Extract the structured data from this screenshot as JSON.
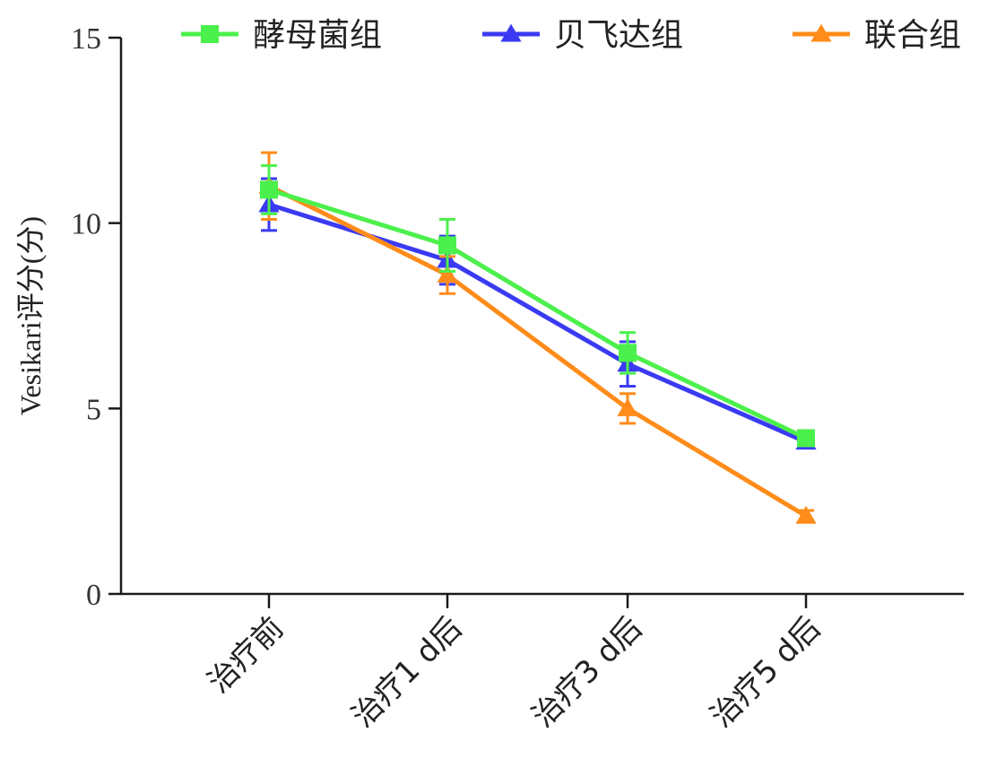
{
  "chart_data": {
    "type": "line",
    "categories": [
      "治疗前",
      "治疗1 d后",
      "治疗3 d后",
      "治疗5 d后"
    ],
    "ylabel": "Vesikari评分(分)",
    "xlabel": "",
    "ylim": [
      0,
      15
    ],
    "yticks": [
      0,
      5,
      10,
      15
    ],
    "grid": false,
    "legend_position": "top",
    "series": [
      {
        "name": "酵母菌组",
        "color": "#4CF04C",
        "marker": "square",
        "values": [
          10.9,
          9.4,
          6.5,
          4.2
        ],
        "errors": [
          0.65,
          0.7,
          0.55,
          0.15
        ]
      },
      {
        "name": "贝飞达组",
        "color": "#3A3AF2",
        "marker": "triangle",
        "values": [
          10.5,
          9.0,
          6.2,
          4.1
        ],
        "errors": [
          0.7,
          0.65,
          0.6,
          0.15
        ]
      },
      {
        "name": "联合组",
        "color": "#FF8C1A",
        "marker": "triangle",
        "values": [
          11.0,
          8.6,
          5.0,
          2.1
        ],
        "errors": [
          0.9,
          0.5,
          0.4,
          0.15
        ]
      }
    ]
  }
}
